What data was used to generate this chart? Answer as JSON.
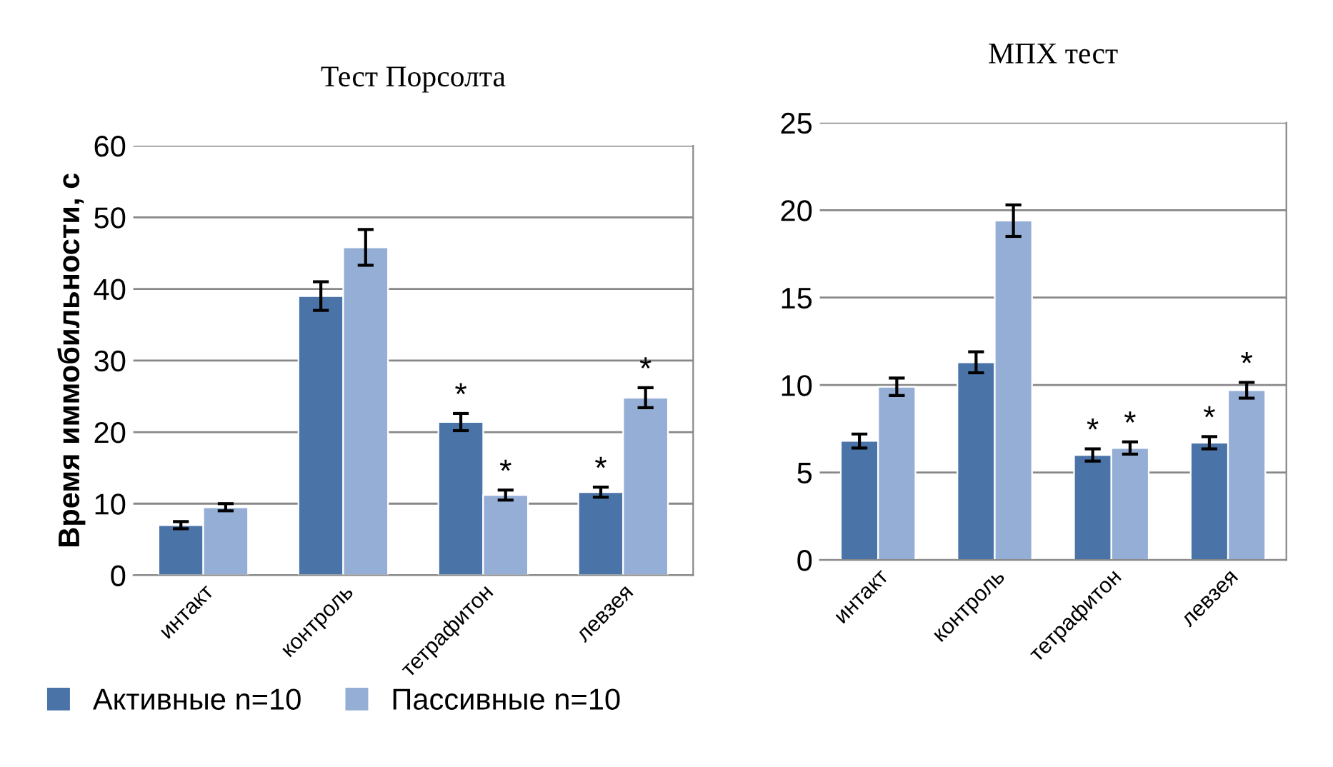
{
  "chart_data": [
    {
      "type": "bar",
      "title": "Тест Порсолта",
      "ylabel": "Время иммобильности, с",
      "categories": [
        "интакт",
        "контроль",
        "тетрафитон",
        "левзея"
      ],
      "series": [
        {
          "name": "Активные n=10",
          "color": "#4a74a8",
          "values": [
            7,
            39,
            21.4,
            11.6
          ],
          "errors": [
            0.5,
            2,
            1.2,
            0.7
          ]
        },
        {
          "name": "Пассивные n=10",
          "color": "#94aed6",
          "values": [
            9.5,
            45.8,
            11.2,
            24.8
          ],
          "errors": [
            0.5,
            2.5,
            0.7,
            1.4
          ]
        }
      ],
      "ylim": [
        0,
        60
      ],
      "yticks": [
        0,
        10,
        20,
        30,
        40,
        50,
        60
      ],
      "grid": "y",
      "legend": "bottom",
      "annotations": [
        {
          "text": "*",
          "x": "тетрафитон",
          "y": 21.4
        },
        {
          "text": "*",
          "x": "тетрафитон",
          "y": 11.2
        },
        {
          "text": "*",
          "x": "левзея",
          "y": 11.6
        },
        {
          "text": "*",
          "x": "левзея",
          "y": 24.8
        }
      ]
    },
    {
      "type": "bar",
      "title": "МПХ тест",
      "categories": [
        "интакт",
        "контроль",
        "тетрафитон",
        "левзея"
      ],
      "series": [
        {
          "color": "#4a74a8",
          "values": [
            6.8,
            11.3,
            6.0,
            6.7
          ],
          "errors": [
            0.4,
            0.6,
            0.35,
            0.35
          ]
        },
        {
          "color": "#94aed6",
          "values": [
            9.9,
            19.4,
            6.4,
            9.7
          ],
          "errors": [
            0.5,
            0.9,
            0.35,
            0.45
          ]
        }
      ],
      "ylim": [
        0,
        25
      ],
      "yticks": [
        0,
        5,
        10,
        15,
        20,
        25
      ],
      "grid": "y",
      "annotations": [
        {
          "text": "*",
          "x": "тетрафитон",
          "y": 6.0
        },
        {
          "text": "*",
          "x": "тетрафитон",
          "y": 6.4
        },
        {
          "text": "*",
          "x": "левзея",
          "y": 6.7
        },
        {
          "text": "*",
          "x": "левзея",
          "y": 9.7
        }
      ]
    }
  ]
}
